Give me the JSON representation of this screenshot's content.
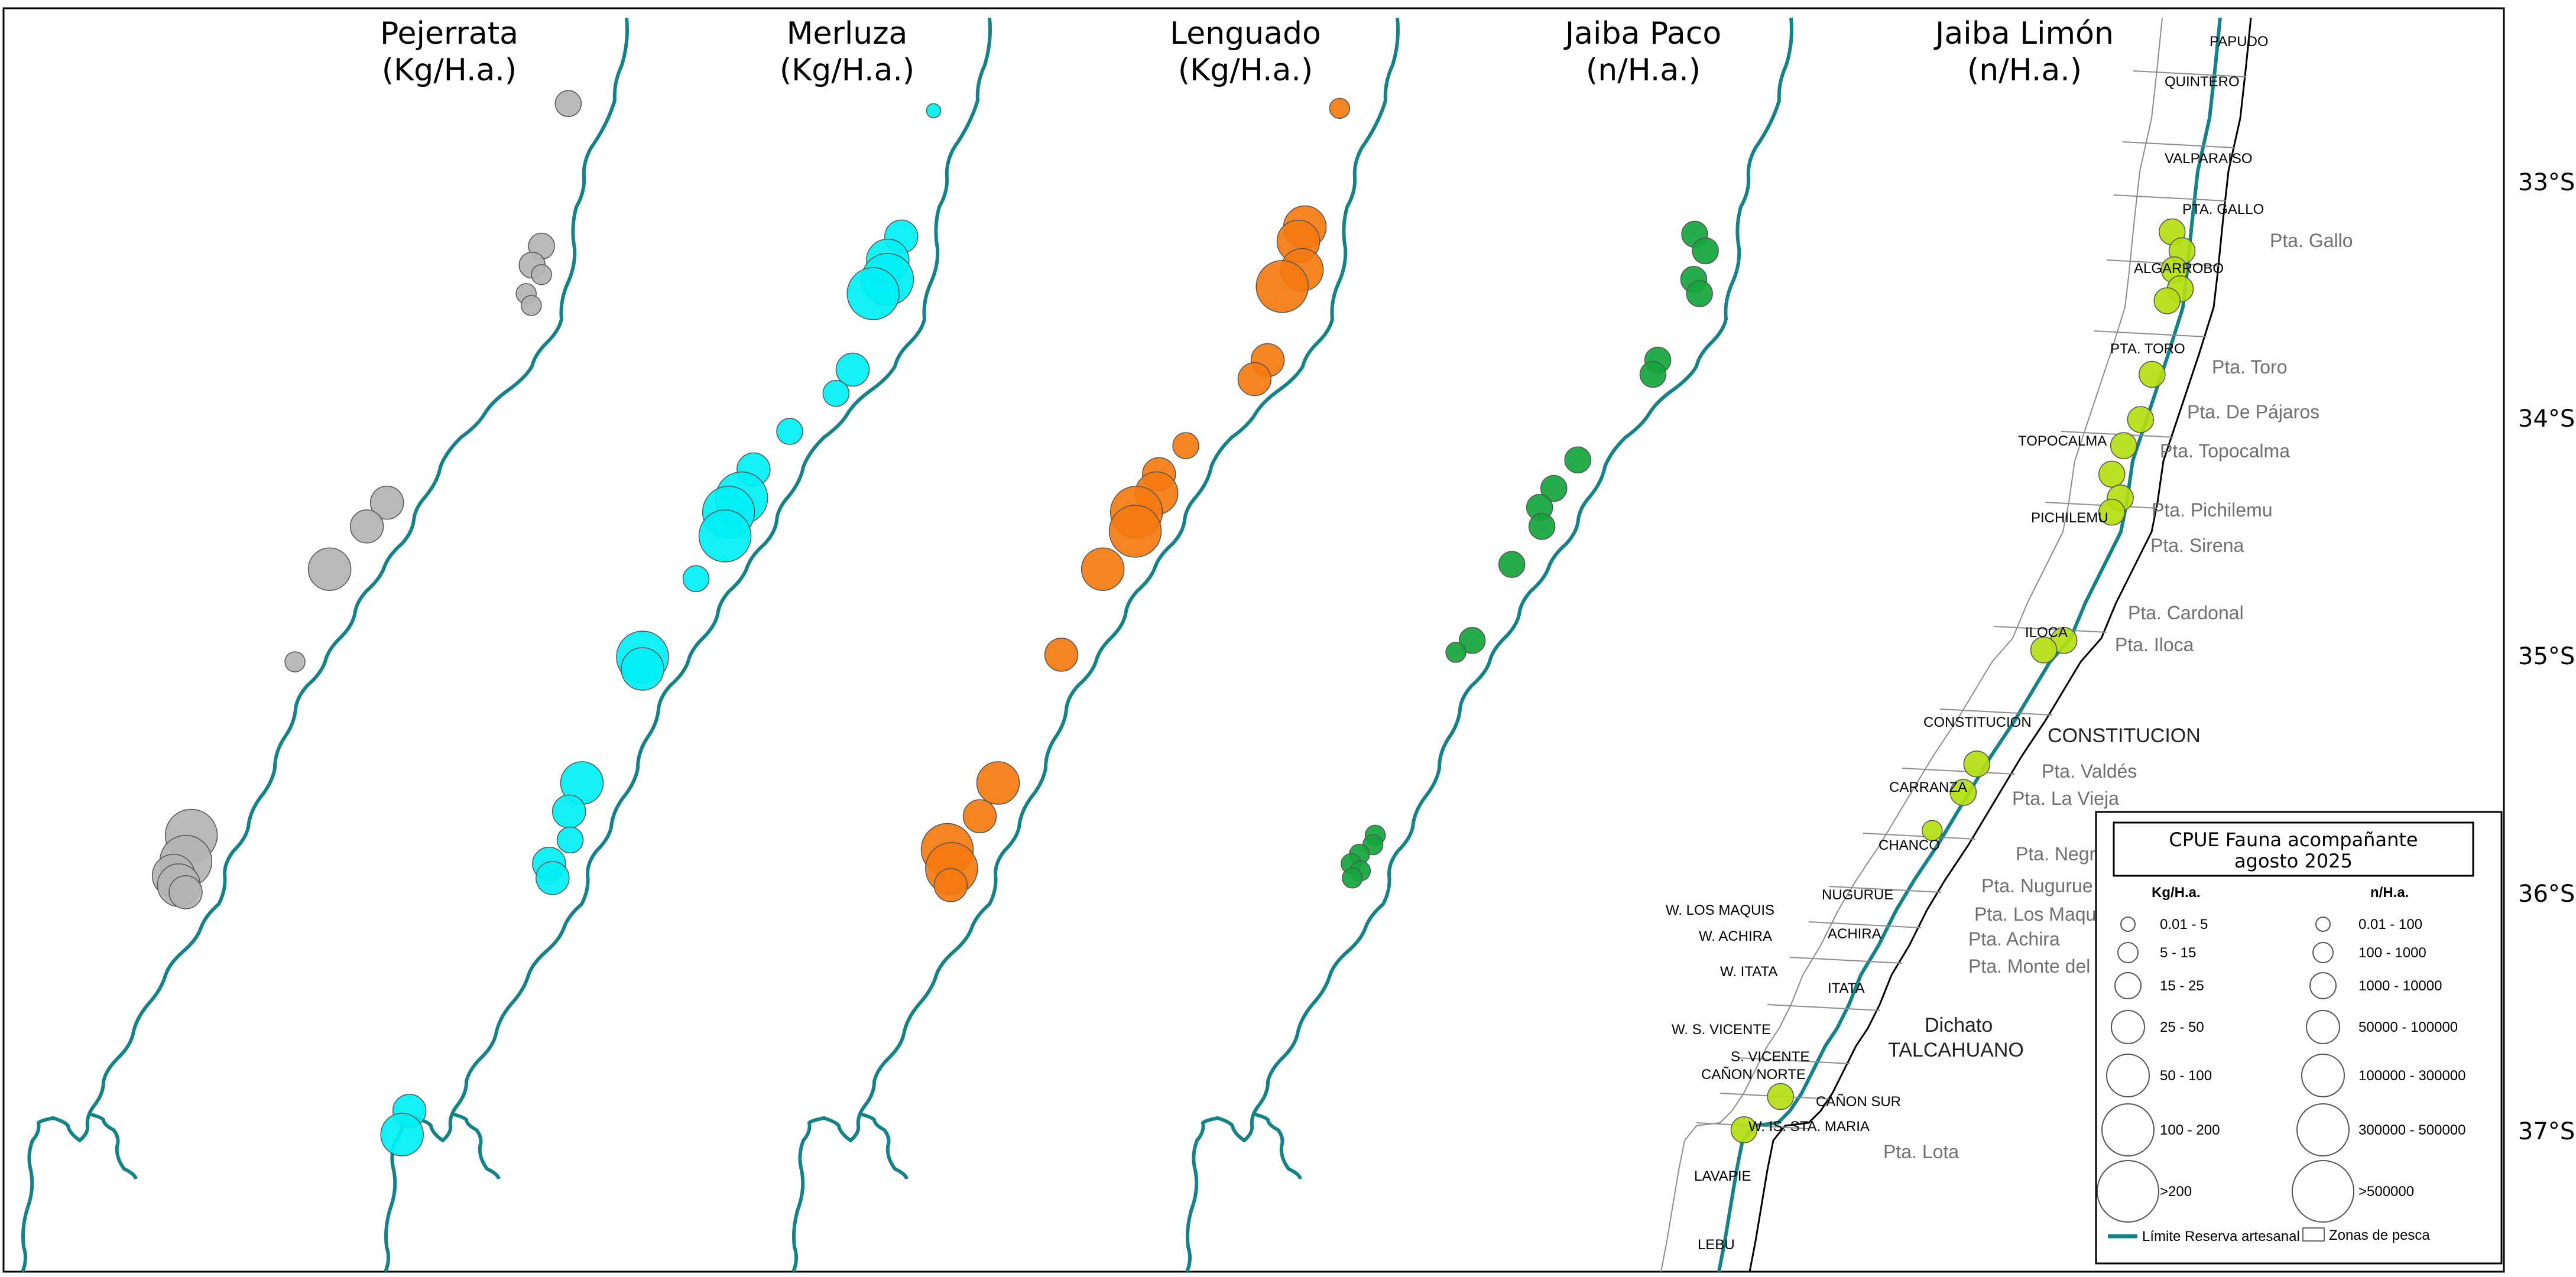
{
  "panels": [
    {
      "species": "Pejerrata",
      "unit": "(Kg/H.a.)"
    },
    {
      "species": "Merluza",
      "unit": "(Kg/H.a.)"
    },
    {
      "species": "Lenguado",
      "unit": "(Kg/H.a.)"
    },
    {
      "species": "Jaiba Paco",
      "unit": "(n/H.a.)"
    },
    {
      "species": "Jaiba Limón",
      "unit": "(n/H.a.)"
    }
  ],
  "colors": {
    "pejerrata": "#b3b3b3",
    "merluza": "#00f0f5",
    "lenguado": "#f47a10",
    "jaiba_paco": "#14a53c",
    "jaiba_limon": "#b4de10",
    "reserva_line": "#138389",
    "zones_line": "#8c8c8c"
  },
  "latitudes": [
    "33°S",
    "34°S",
    "35°S",
    "36°S",
    "37°S"
  ],
  "fishing_zones": {
    "north": [
      "PAPUDO",
      "QUINTERO",
      "VALPARAISO",
      "PTA. GALLO",
      "ALGARROBO",
      "PTA. TORO",
      "TOPOCALMA",
      "PICHILEMU",
      "ILOCA",
      "CONSTITUCION",
      "CARRANZA",
      "CHANCO"
    ],
    "south": [
      "NUGURUE",
      "W. LOS MAQUIS",
      "W. ACHIRA",
      "ACHIRA",
      "W. ITATA",
      "ITATA",
      "W. S. VICENTE",
      "S. VICENTE",
      "CAÑON NORTE",
      "CAÑON SUR",
      "W. IS. STA. MARIA",
      "LAVAPIE",
      "LEBU"
    ]
  },
  "capes": [
    "Pta. Gallo",
    "Pta. Toro",
    "Pta. De Pájaros",
    "Pta. Topocalma",
    "Pta. Pichilemu",
    "Pta. Sirena",
    "Pta. Cardonal",
    "Pta. Iloca",
    "Pta. Valdés",
    "Pta. La Vieja",
    "Pta. Negra",
    "Pta. Nugurue",
    "Pta. Los Maquis",
    "Pta. Achira",
    "Pta. Monte del Leon",
    "Pta. Lota"
  ],
  "cities": [
    "CONSTITUCION",
    "Dichato",
    "TALCAHUANO"
  ],
  "legend": {
    "title_line1": "CPUE Fauna acompañante",
    "title_line2": "agosto 2025",
    "col_kg_header": "Kg/H.a.",
    "col_n_header": "n/H.a.",
    "kg_classes": [
      "0.01 - 5",
      "5 - 15",
      "15 - 25",
      "25 - 50",
      "50 - 100",
      "100 - 200",
      ">200"
    ],
    "n_classes": [
      "0.01 - 100",
      "100 - 1000",
      "1000 - 10000",
      "50000 - 100000",
      "100000 - 300000",
      "300000 - 500000",
      ">500000"
    ],
    "line_label": "Límite Reserva artesanal",
    "box_label": "Zonas de pesca"
  },
  "observations": {
    "pejerrata": [
      {
        "lat": -32.64,
        "cls": 3
      },
      {
        "lat": -33.24,
        "cls": 3
      },
      {
        "lat": -33.32,
        "cls": 3
      },
      {
        "lat": -33.36,
        "cls": 2
      },
      {
        "lat": -33.44,
        "cls": 2
      },
      {
        "lat": -33.49,
        "cls": 2
      },
      {
        "lat": -34.32,
        "cls": 4
      },
      {
        "lat": -34.42,
        "cls": 4
      },
      {
        "lat": -34.6,
        "cls": 5
      },
      {
        "lat": -34.99,
        "cls": 2
      },
      {
        "lat": -35.72,
        "cls": 6
      },
      {
        "lat": -35.83,
        "cls": 6
      },
      {
        "lat": -35.89,
        "cls": 5
      },
      {
        "lat": -35.93,
        "cls": 5
      },
      {
        "lat": -35.96,
        "cls": 4
      }
    ],
    "merluza": [
      {
        "lat": -32.67,
        "cls": 1
      },
      {
        "lat": -33.2,
        "cls": 4
      },
      {
        "lat": -33.3,
        "cls": 5
      },
      {
        "lat": -33.38,
        "cls": 6
      },
      {
        "lat": -33.44,
        "cls": 6
      },
      {
        "lat": -33.76,
        "cls": 4
      },
      {
        "lat": -33.86,
        "cls": 3
      },
      {
        "lat": -34.02,
        "cls": 3
      },
      {
        "lat": -34.18,
        "cls": 4
      },
      {
        "lat": -34.3,
        "cls": 6
      },
      {
        "lat": -34.36,
        "cls": 6
      },
      {
        "lat": -34.46,
        "cls": 6
      },
      {
        "lat": -34.64,
        "cls": 3
      },
      {
        "lat": -34.97,
        "cls": 6
      },
      {
        "lat": -35.02,
        "cls": 5
      },
      {
        "lat": -35.5,
        "cls": 5
      },
      {
        "lat": -35.62,
        "cls": 4
      },
      {
        "lat": -35.74,
        "cls": 3
      },
      {
        "lat": -35.84,
        "cls": 4
      },
      {
        "lat": -35.9,
        "cls": 4
      },
      {
        "lat": -36.88,
        "cls": 4
      },
      {
        "lat": -36.98,
        "cls": 5
      }
    ],
    "lenguado": [
      {
        "lat": -32.66,
        "cls": 2
      },
      {
        "lat": -33.16,
        "cls": 5
      },
      {
        "lat": -33.22,
        "cls": 5
      },
      {
        "lat": -33.34,
        "cls": 5
      },
      {
        "lat": -33.41,
        "cls": 6
      },
      {
        "lat": -33.72,
        "cls": 4
      },
      {
        "lat": -33.8,
        "cls": 4
      },
      {
        "lat": -34.08,
        "cls": 3
      },
      {
        "lat": -34.2,
        "cls": 4
      },
      {
        "lat": -34.28,
        "cls": 5
      },
      {
        "lat": -34.36,
        "cls": 6
      },
      {
        "lat": -34.44,
        "cls": 6
      },
      {
        "lat": -34.6,
        "cls": 5
      },
      {
        "lat": -34.96,
        "cls": 4
      },
      {
        "lat": -35.5,
        "cls": 5
      },
      {
        "lat": -35.64,
        "cls": 4
      },
      {
        "lat": -35.78,
        "cls": 6
      },
      {
        "lat": -35.86,
        "cls": 6
      },
      {
        "lat": -35.93,
        "cls": 4
      }
    ],
    "jaiba_paco": [
      {
        "lat": -33.19,
        "cls": 3
      },
      {
        "lat": -33.26,
        "cls": 3
      },
      {
        "lat": -33.38,
        "cls": 3
      },
      {
        "lat": -33.44,
        "cls": 3
      },
      {
        "lat": -33.72,
        "cls": 3
      },
      {
        "lat": -33.78,
        "cls": 3
      },
      {
        "lat": -34.14,
        "cls": 3
      },
      {
        "lat": -34.26,
        "cls": 3
      },
      {
        "lat": -34.34,
        "cls": 3
      },
      {
        "lat": -34.42,
        "cls": 3
      },
      {
        "lat": -34.58,
        "cls": 3
      },
      {
        "lat": -34.9,
        "cls": 3
      },
      {
        "lat": -34.95,
        "cls": 2
      },
      {
        "lat": -35.72,
        "cls": 2
      },
      {
        "lat": -35.76,
        "cls": 2
      },
      {
        "lat": -35.8,
        "cls": 2
      },
      {
        "lat": -35.84,
        "cls": 2
      },
      {
        "lat": -35.87,
        "cls": 2
      },
      {
        "lat": -35.9,
        "cls": 2
      }
    ],
    "jaiba_limon": [
      {
        "lat": -33.18,
        "cls": 3
      },
      {
        "lat": -33.26,
        "cls": 3
      },
      {
        "lat": -33.34,
        "cls": 3
      },
      {
        "lat": -33.42,
        "cls": 3
      },
      {
        "lat": -33.47,
        "cls": 3
      },
      {
        "lat": -33.78,
        "cls": 3
      },
      {
        "lat": -33.97,
        "cls": 3
      },
      {
        "lat": -34.08,
        "cls": 3
      },
      {
        "lat": -34.2,
        "cls": 3
      },
      {
        "lat": -34.3,
        "cls": 3
      },
      {
        "lat": -34.36,
        "cls": 3
      },
      {
        "lat": -34.9,
        "cls": 3
      },
      {
        "lat": -34.94,
        "cls": 3
      },
      {
        "lat": -35.42,
        "cls": 3
      },
      {
        "lat": -35.54,
        "cls": 3
      },
      {
        "lat": -35.7,
        "cls": 2
      },
      {
        "lat": -36.82,
        "cls": 3
      },
      {
        "lat": -36.96,
        "cls": 3
      }
    ]
  }
}
